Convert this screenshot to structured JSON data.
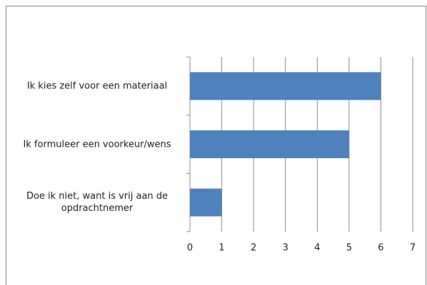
{
  "chart_data": {
    "type": "barh",
    "categories": [
      "Ik kies zelf voor een materiaal",
      "Ik formuleer een voorkeur/wens",
      "Doe ik niet, want is vrij aan de opdrachtnemer"
    ],
    "values": [
      6,
      5,
      1
    ],
    "color": "#4f81bd",
    "xlim": [
      0,
      7
    ],
    "xticks": [
      0,
      1,
      2,
      3,
      4,
      5,
      6,
      7
    ],
    "grid": true
  }
}
